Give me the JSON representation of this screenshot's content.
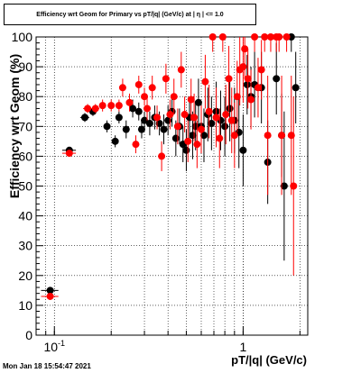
{
  "title": "Efficiency wrt Geom for Primary vs pT/|q| (GeV/c) at | η | <= 1.0",
  "timestamp": "Mon Jan 18 15:54:47 2021",
  "chart_data": {
    "type": "scatter",
    "xlabel": "pT/|q| (GeV/c)",
    "ylabel": "Efficiency wrt Geom (%)",
    "xscale": "log",
    "xlim": [
      0.08,
      2.2
    ],
    "ylim": [
      0,
      100
    ],
    "yticks": [
      0,
      10,
      20,
      30,
      40,
      50,
      60,
      70,
      80,
      90,
      100
    ],
    "xticks_major": [
      {
        "value": 0.1,
        "label": "10^-1"
      },
      {
        "value": 1,
        "label": "1"
      }
    ],
    "grid": true,
    "colors": {
      "black_series": "#000000",
      "red_series": "#ff0000"
    },
    "series": [
      {
        "color": "#000000",
        "points": [
          [
            0.095,
            15,
            0.01,
            1
          ],
          [
            0.12,
            62,
            0.01,
            1
          ],
          [
            0.145,
            73,
            0.008,
            1.5
          ],
          [
            0.16,
            75,
            0.008,
            1.5
          ],
          [
            0.19,
            70,
            0.006,
            2
          ],
          [
            0.21,
            65,
            0.006,
            2
          ],
          [
            0.22,
            73,
            0.006,
            2
          ],
          [
            0.24,
            69,
            0.006,
            3
          ],
          [
            0.26,
            76,
            0.006,
            3
          ],
          [
            0.28,
            75,
            0.006,
            3
          ],
          [
            0.29,
            69,
            0.006,
            3
          ],
          [
            0.3,
            72,
            0.006,
            3
          ],
          [
            0.32,
            71,
            0.006,
            4
          ],
          [
            0.34,
            73,
            0.006,
            4
          ],
          [
            0.36,
            71,
            0.006,
            4
          ],
          [
            0.38,
            69,
            0.006,
            5
          ],
          [
            0.4,
            72,
            0.006,
            5
          ],
          [
            0.42,
            75,
            0.006,
            5
          ],
          [
            0.44,
            66,
            0.006,
            6
          ],
          [
            0.46,
            70,
            0.006,
            6
          ],
          [
            0.48,
            64,
            0.006,
            6
          ],
          [
            0.5,
            62,
            0.006,
            7
          ],
          [
            0.52,
            73,
            0.006,
            7
          ],
          [
            0.54,
            67,
            0.006,
            8
          ],
          [
            0.56,
            70,
            0.006,
            8
          ],
          [
            0.58,
            78,
            0.006,
            8
          ],
          [
            0.6,
            70,
            0.006,
            8
          ],
          [
            0.62,
            67,
            0.006,
            9
          ],
          [
            0.65,
            74,
            0.006,
            9
          ],
          [
            0.68,
            71,
            0.006,
            9
          ],
          [
            0.72,
            75,
            0.006,
            10
          ],
          [
            0.76,
            72,
            0.006,
            10
          ],
          [
            0.8,
            70,
            0.006,
            10
          ],
          [
            0.85,
            76,
            0.006,
            11
          ],
          [
            0.9,
            72,
            0.006,
            11
          ],
          [
            0.95,
            68,
            0.006,
            12
          ],
          [
            1.0,
            62,
            0.006,
            12
          ],
          [
            1.05,
            84,
            0.006,
            10
          ],
          [
            1.1,
            80,
            0.006,
            10
          ],
          [
            1.15,
            84,
            0.006,
            11
          ],
          [
            1.25,
            83,
            0.006,
            12
          ],
          [
            1.35,
            58,
            0.006,
            14
          ],
          [
            1.5,
            86,
            0.006,
            12
          ],
          [
            1.6,
            67,
            0.006,
            14
          ],
          [
            1.65,
            50,
            0.006,
            25
          ],
          [
            1.8,
            100,
            0.006,
            5
          ],
          [
            1.9,
            83,
            0.006,
            12
          ]
        ]
      },
      {
        "color": "#ff0000",
        "points": [
          [
            0.095,
            13,
            0.01,
            1
          ],
          [
            0.12,
            61,
            0.01,
            1
          ],
          [
            0.15,
            76,
            0.008,
            1.5
          ],
          [
            0.165,
            76,
            0.008,
            1.5
          ],
          [
            0.18,
            77,
            0.006,
            2
          ],
          [
            0.2,
            77,
            0.006,
            2
          ],
          [
            0.22,
            77,
            0.006,
            2
          ],
          [
            0.23,
            83,
            0.006,
            3
          ],
          [
            0.25,
            78,
            0.006,
            3
          ],
          [
            0.27,
            64,
            0.006,
            3
          ],
          [
            0.28,
            84,
            0.006,
            3
          ],
          [
            0.3,
            80,
            0.006,
            3
          ],
          [
            0.31,
            76,
            0.006,
            4
          ],
          [
            0.33,
            83,
            0.006,
            4
          ],
          [
            0.35,
            73,
            0.006,
            4
          ],
          [
            0.37,
            60,
            0.006,
            5
          ],
          [
            0.39,
            86,
            0.006,
            5
          ],
          [
            0.41,
            74,
            0.006,
            5
          ],
          [
            0.43,
            80,
            0.006,
            6
          ],
          [
            0.45,
            70,
            0.006,
            6
          ],
          [
            0.47,
            89,
            0.006,
            6
          ],
          [
            0.49,
            74,
            0.006,
            6
          ],
          [
            0.51,
            65,
            0.006,
            7
          ],
          [
            0.53,
            79,
            0.006,
            7
          ],
          [
            0.55,
            73,
            0.006,
            8
          ],
          [
            0.57,
            64,
            0.006,
            8
          ],
          [
            0.6,
            69,
            0.006,
            8
          ],
          [
            0.63,
            85,
            0.006,
            9
          ],
          [
            0.66,
            75,
            0.006,
            9
          ],
          [
            0.69,
            100,
            0.006,
            5
          ],
          [
            0.72,
            73,
            0.006,
            10
          ],
          [
            0.75,
            66,
            0.006,
            10
          ],
          [
            0.78,
            100,
            0.006,
            5
          ],
          [
            0.81,
            74,
            0.006,
            10
          ],
          [
            0.84,
            86,
            0.006,
            11
          ],
          [
            0.87,
            72,
            0.006,
            11
          ],
          [
            0.9,
            67,
            0.006,
            11
          ],
          [
            0.93,
            80,
            0.006,
            12
          ],
          [
            0.96,
            89,
            0.006,
            12
          ],
          [
            1.0,
            90,
            0.006,
            12
          ],
          [
            1.02,
            96,
            0.006,
            10
          ],
          [
            1.06,
            86,
            0.006,
            10
          ],
          [
            1.1,
            79,
            0.006,
            10
          ],
          [
            1.15,
            100,
            0.006,
            5
          ],
          [
            1.2,
            83,
            0.006,
            10
          ],
          [
            1.25,
            89,
            0.006,
            10
          ],
          [
            1.3,
            100,
            0.006,
            5
          ],
          [
            1.35,
            67,
            0.006,
            20
          ],
          [
            1.4,
            100,
            0.006,
            5
          ],
          [
            1.5,
            100,
            0.006,
            5
          ],
          [
            1.55,
            100,
            0.006,
            5
          ],
          [
            1.6,
            67,
            0.006,
            20
          ],
          [
            1.7,
            100,
            0.006,
            5
          ],
          [
            1.8,
            67,
            0.006,
            20
          ],
          [
            1.85,
            50,
            0.006,
            30
          ]
        ]
      }
    ]
  }
}
